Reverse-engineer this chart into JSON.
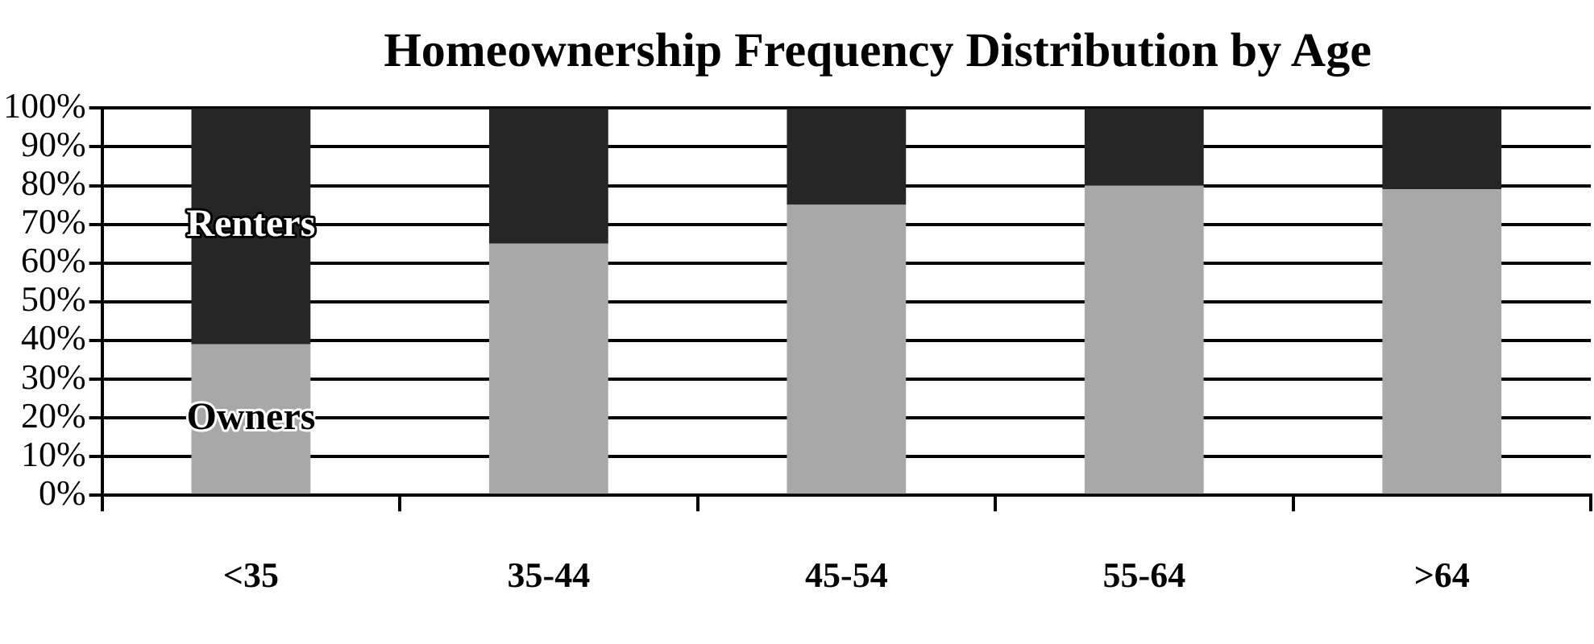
{
  "chart_data": {
    "type": "bar",
    "title": "Homeownership Frequency Distribution by Age",
    "categories": [
      "<35",
      "35-44",
      "45-54",
      "55-64",
      ">64"
    ],
    "stacked": true,
    "series": [
      {
        "name": "Owners",
        "color": "#a8a8a8",
        "values": [
          39,
          65,
          75,
          80,
          79
        ]
      },
      {
        "name": "Renters",
        "color": "#262626",
        "values": [
          61,
          35,
          25,
          20,
          21
        ]
      }
    ],
    "ylim": [
      0,
      100
    ],
    "yticks": [
      {
        "value": 0,
        "label": "0%"
      },
      {
        "value": 10,
        "label": "10%"
      },
      {
        "value": 20,
        "label": "20%"
      },
      {
        "value": 30,
        "label": "30%"
      },
      {
        "value": 40,
        "label": "40%"
      },
      {
        "value": 50,
        "label": "50%"
      },
      {
        "value": 60,
        "label": "60%"
      },
      {
        "value": 70,
        "label": "70%"
      },
      {
        "value": 80,
        "label": "80%"
      },
      {
        "value": 90,
        "label": "90%"
      },
      {
        "value": 100,
        "label": "100%"
      }
    ],
    "grid": "y",
    "legend": false
  }
}
